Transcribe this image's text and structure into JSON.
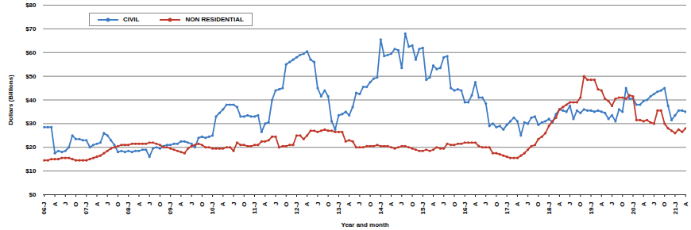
{
  "chart_data": {
    "type": "line",
    "x_label": "Year and month",
    "y_label": "Dollars (Billions)",
    "ylim": [
      0,
      80
    ],
    "yticks": [
      {
        "value": 0,
        "label": "$0"
      },
      {
        "value": 10,
        "label": "$10"
      },
      {
        "value": 20,
        "label": "$20"
      },
      {
        "value": 30,
        "label": "$30"
      },
      {
        "value": 40,
        "label": "$40"
      },
      {
        "value": 50,
        "label": "$50"
      },
      {
        "value": 60,
        "label": "$60"
      },
      {
        "value": 70,
        "label": "$70"
      },
      {
        "value": 80,
        "label": "$80"
      }
    ],
    "grid": true,
    "legend": "top-left",
    "categories": [
      "06-J",
      null,
      null,
      "A",
      null,
      null,
      "J",
      null,
      null,
      "O",
      null,
      null,
      "07-J",
      null,
      null,
      "A",
      null,
      null,
      "J",
      null,
      null,
      "O",
      null,
      null,
      "08-J",
      null,
      null,
      "A",
      null,
      null,
      "J",
      null,
      null,
      "O",
      null,
      null,
      "09-J",
      null,
      null,
      "A",
      null,
      null,
      "J",
      null,
      null,
      "O",
      null,
      null,
      "10-J",
      null,
      null,
      "A",
      null,
      null,
      "J",
      null,
      null,
      "O",
      null,
      null,
      "11-J",
      null,
      null,
      "A",
      null,
      null,
      "J",
      null,
      null,
      "O",
      null,
      null,
      "12-J",
      null,
      null,
      "A",
      null,
      null,
      "J",
      null,
      null,
      "O",
      null,
      null,
      "13-J",
      null,
      null,
      "A",
      null,
      null,
      "J",
      null,
      null,
      "O",
      null,
      null,
      "14-J",
      null,
      null,
      "A",
      null,
      null,
      "J",
      null,
      null,
      "O",
      null,
      null,
      "15-J",
      null,
      null,
      "A",
      null,
      null,
      "J",
      null,
      null,
      "O",
      null,
      null,
      "16-J",
      null,
      null,
      "A",
      null,
      null,
      "J",
      null,
      null,
      "O",
      null,
      null,
      "17-J",
      null,
      null,
      "A",
      null,
      null,
      "J",
      null,
      null,
      "O",
      null,
      null,
      "18-J",
      null,
      null,
      "A",
      null,
      null,
      "J",
      null,
      null,
      "O",
      null,
      null,
      "19-J",
      null,
      null,
      "A",
      null,
      null,
      "J",
      null,
      null,
      "O",
      null,
      null,
      "20-J",
      null,
      null,
      "A",
      null,
      null,
      "J",
      null,
      null,
      "O",
      null,
      null,
      "21-J",
      null,
      null,
      "A"
    ],
    "series": [
      {
        "name": "CIVIL",
        "color": "#3f7cc4",
        "marker": "circle",
        "values": [
          28.5,
          28.5,
          28.5,
          17.5,
          18.5,
          18,
          18.5,
          20,
          25,
          23.5,
          23.5,
          23,
          23,
          20,
          21,
          21.5,
          22,
          26,
          25,
          23,
          21,
          18,
          18.5,
          18,
          18.5,
          18,
          18.5,
          18.5,
          19,
          19,
          16,
          19.5,
          20,
          19.5,
          20.5,
          21,
          21,
          21.5,
          21.5,
          22.5,
          22.5,
          22,
          21.5,
          20,
          24,
          24.5,
          24,
          24.5,
          25,
          33,
          34.5,
          36,
          38,
          38,
          38,
          37,
          33,
          33,
          33.5,
          33,
          33,
          33.5,
          26.5,
          30,
          30.5,
          40,
          44,
          44.5,
          45,
          55,
          56,
          57,
          58,
          59,
          59.5,
          60.5,
          57,
          56,
          45,
          41.5,
          44,
          41.5,
          31,
          27.5,
          33.5,
          34,
          35,
          33.5,
          37,
          43,
          42.5,
          45.5,
          45.5,
          47.5,
          49,
          49.5,
          65.5,
          58.5,
          59,
          59.5,
          61.5,
          61,
          53.5,
          68,
          62.5,
          63,
          57,
          61.5,
          62,
          48.5,
          49.5,
          54.5,
          53,
          53.5,
          58,
          58.5,
          45,
          44,
          44.5,
          44,
          39,
          39,
          42,
          47.5,
          41,
          41,
          38.5,
          29,
          30,
          28.5,
          29,
          27.5,
          29.5,
          31,
          32.5,
          31,
          25,
          30.5,
          30,
          32.5,
          33,
          29.5,
          30.5,
          31,
          32,
          30.5,
          34,
          36,
          35.5,
          35,
          37.5,
          32,
          35.5,
          34.5,
          36,
          35.5,
          35.5,
          35,
          35.5,
          35,
          34.5,
          32,
          33.5,
          31,
          36,
          35,
          45,
          40.5,
          40.5,
          38,
          38,
          39.5,
          40,
          41.5,
          42.5,
          43.5,
          44,
          45,
          37.5,
          31.5,
          33.5,
          35.5,
          35.5,
          35
        ]
      },
      {
        "name": "NON RESIDENTIAL",
        "color": "#c0392b",
        "marker": "circle",
        "values": [
          14.5,
          14.5,
          15,
          15,
          15,
          15.5,
          15.5,
          15.5,
          15,
          14.5,
          14.5,
          14.5,
          14.5,
          15,
          15.5,
          16,
          16.5,
          17.5,
          18.5,
          19.5,
          20,
          20.5,
          21,
          21,
          21,
          21.5,
          21.5,
          21.5,
          21.5,
          21.5,
          22,
          22,
          21.5,
          21,
          20,
          20,
          19.5,
          19,
          18.5,
          18,
          17.5,
          19.5,
          20.5,
          21,
          21.5,
          21,
          20,
          20,
          19.5,
          19.5,
          19.5,
          19.5,
          20,
          20,
          18.5,
          22,
          21,
          21,
          20.5,
          20.5,
          21,
          21,
          22.5,
          22.5,
          23,
          24.5,
          24.5,
          20,
          20.5,
          20.5,
          21,
          21,
          25,
          25,
          23.5,
          25,
          27,
          27,
          26.5,
          27,
          27.5,
          27,
          27,
          26.5,
          26.5,
          26.5,
          22.5,
          23,
          22.5,
          20,
          20,
          20,
          20.5,
          20.5,
          20.5,
          21,
          20.5,
          20.5,
          20.5,
          20,
          19.5,
          20,
          20.5,
          20.5,
          20,
          19.5,
          19,
          18.5,
          18.5,
          19,
          18.5,
          19,
          20,
          19.5,
          19.5,
          21.5,
          21,
          21,
          21.5,
          21.5,
          22,
          22,
          22,
          22,
          20.5,
          20,
          20,
          20,
          17.5,
          17.5,
          17,
          16.5,
          16,
          15.5,
          15.5,
          15.5,
          16.5,
          17.5,
          19,
          20.5,
          21,
          23.5,
          24.5,
          26,
          29,
          31,
          32.5,
          36,
          37,
          38,
          39,
          39,
          39,
          41,
          50,
          48.5,
          48.5,
          48.5,
          44.5,
          44,
          40.5,
          39.5,
          37.5,
          40.5,
          41,
          41,
          40.5,
          42,
          41.5,
          31.5,
          31.5,
          31,
          31.5,
          30.5,
          30,
          35.5,
          35.5,
          30,
          28,
          27,
          26,
          27.5,
          26.5,
          28
        ]
      }
    ]
  }
}
